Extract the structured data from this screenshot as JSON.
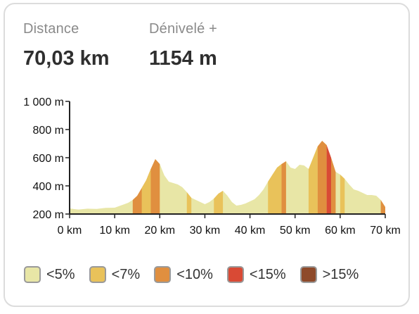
{
  "stats": {
    "distance": {
      "label": "Distance",
      "value": "70,03 km"
    },
    "elevation_gain": {
      "label": "Dénivelé +",
      "value": "1154 m"
    }
  },
  "legend": [
    {
      "label": "<5%",
      "color": "#e8e6a6"
    },
    {
      "label": "<7%",
      "color": "#e9c25a"
    },
    {
      "label": "<10%",
      "color": "#e08f3f"
    },
    {
      "label": "<15%",
      "color": "#d94a35"
    },
    {
      "label": ">15%",
      "color": "#8e4a2a"
    }
  ],
  "chart_data": {
    "type": "area",
    "xlabel": "",
    "ylabel": "",
    "xlim": [
      0,
      70
    ],
    "ylim": [
      200,
      1000
    ],
    "x_ticks": [
      0,
      10,
      20,
      30,
      40,
      50,
      60,
      70
    ],
    "x_tick_labels": [
      "0 km",
      "10 km",
      "20 km",
      "30 km",
      "40 km",
      "50 km",
      "60 km",
      "70 km"
    ],
    "y_ticks": [
      200,
      400,
      600,
      800,
      1000
    ],
    "y_tick_labels": [
      "200 m",
      "400 m",
      "600 m",
      "800 m",
      "1 000 m"
    ],
    "series": [
      {
        "x": [
          0,
          1,
          2,
          4,
          6,
          8,
          10,
          12,
          13,
          14,
          15,
          16,
          17,
          18,
          19,
          20,
          21,
          22,
          23,
          24,
          25,
          26,
          27,
          28,
          29,
          30,
          31,
          32,
          33,
          34,
          35,
          36,
          37,
          38,
          39,
          40,
          41,
          42,
          43,
          44,
          45,
          46,
          47,
          48,
          49,
          50,
          51,
          52,
          53,
          54,
          55,
          56,
          57,
          58,
          59,
          60,
          61,
          62,
          63,
          64,
          65,
          66,
          67,
          68,
          69,
          70
        ],
        "y": [
          240,
          235,
          232,
          238,
          236,
          244,
          245,
          268,
          280,
          300,
          330,
          385,
          440,
          520,
          590,
          555,
          475,
          430,
          420,
          410,
          390,
          355,
          315,
          300,
          285,
          270,
          285,
          310,
          345,
          365,
          330,
          285,
          260,
          265,
          275,
          290,
          305,
          335,
          375,
          430,
          480,
          530,
          555,
          575,
          530,
          520,
          550,
          545,
          520,
          600,
          680,
          720,
          690,
          600,
          500,
          480,
          450,
          410,
          375,
          365,
          350,
          335,
          335,
          330,
          300,
          250
        ]
      }
    ],
    "grade_bands": [
      {
        "from": 14,
        "to": 20,
        "grade": "<10%"
      },
      {
        "from": 16,
        "to": 18,
        "grade": "<7%"
      },
      {
        "from": 26,
        "to": 27,
        "grade": "<7%"
      },
      {
        "from": 32,
        "to": 34,
        "grade": "<7%"
      },
      {
        "from": 44,
        "to": 47,
        "grade": "<7%"
      },
      {
        "from": 47,
        "to": 48,
        "grade": "<10%"
      },
      {
        "from": 53,
        "to": 55,
        "grade": "<7%"
      },
      {
        "from": 55,
        "to": 57,
        "grade": "<10%"
      },
      {
        "from": 57,
        "to": 58,
        "grade": "<15%"
      },
      {
        "from": 58,
        "to": 59,
        "grade": "<10%"
      },
      {
        "from": 60,
        "to": 61,
        "grade": "<7%"
      },
      {
        "from": 69,
        "to": 70,
        "grade": "<10%"
      }
    ]
  }
}
